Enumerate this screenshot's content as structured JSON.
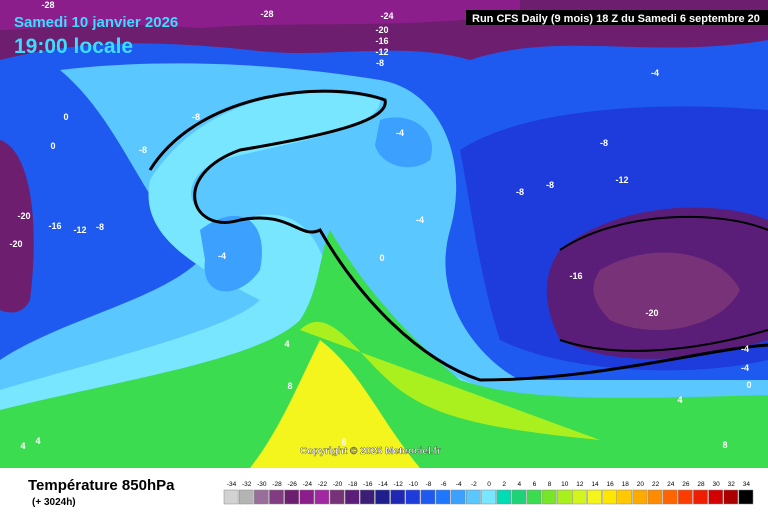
{
  "header": {
    "date": "Samedi 10 janvier 2026",
    "time": "19:00 locale",
    "run": "Run CFS Daily (9 mois) 18 Z du Samedi 6 septembre 20"
  },
  "map": {
    "labels": [
      "-28",
      "-28",
      "-24",
      "-20",
      "-16",
      "-12",
      "-8",
      "-4",
      "-8",
      "0",
      "0",
      "-8",
      "-4",
      "-8",
      "-12",
      "-8",
      "-8",
      "-20",
      "-16",
      "-12",
      "-8",
      "-20",
      "-4",
      "-4",
      "0",
      "-16",
      "-20",
      "4",
      "8",
      "-4",
      "0",
      "-4",
      "4",
      "4",
      "8",
      "8",
      "4"
    ],
    "copyright": "Copyright © 2025 Meteociel.fr"
  },
  "footer": {
    "title": "Température 850hPa",
    "subtitle": "(+ 3024h)"
  },
  "scale": {
    "values": [
      -34,
      -32,
      -30,
      -28,
      -26,
      -24,
      -22,
      -20,
      -18,
      -16,
      -14,
      -12,
      -10,
      -8,
      -6,
      -4,
      -2,
      0,
      2,
      4,
      6,
      8,
      10,
      12,
      14,
      16,
      18,
      20,
      22,
      24,
      26,
      28,
      30,
      32,
      34
    ],
    "colors": [
      "#d2d2d2",
      "#b4b4b4",
      "#9a6e9a",
      "#823c82",
      "#6e1e6e",
      "#8c1e8c",
      "#a028a0",
      "#783278",
      "#5a1e78",
      "#3c1e78",
      "#1e1e8c",
      "#1e28b4",
      "#1e3cdc",
      "#1e5af0",
      "#1e78ff",
      "#3ca0ff",
      "#5ac8ff",
      "#78e6ff",
      "#00dcb4",
      "#1ed278",
      "#3cdc50",
      "#78e628",
      "#aaf01e",
      "#d2f51e",
      "#f5f51e",
      "#ffe600",
      "#ffc800",
      "#ffaa00",
      "#ff8c00",
      "#ff6400",
      "#ff3c00",
      "#f01e00",
      "#d20000",
      "#aa0000",
      "#000000"
    ]
  }
}
